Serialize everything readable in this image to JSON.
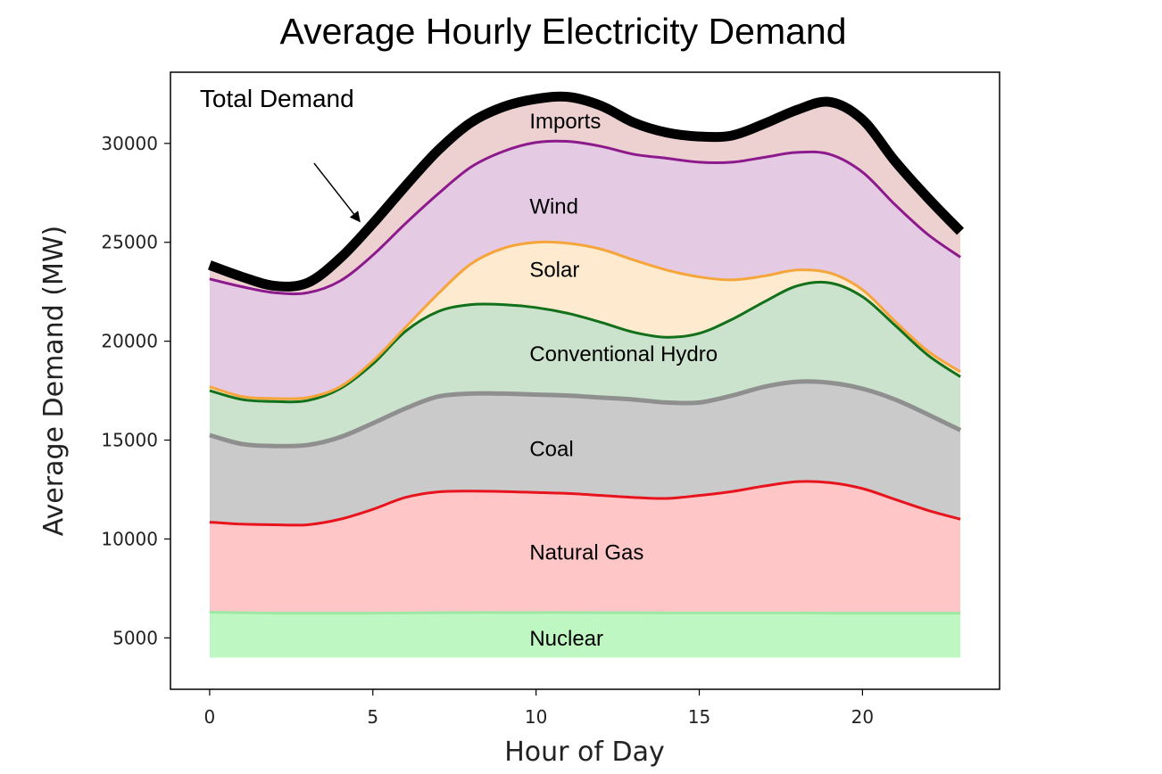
{
  "chart_data": {
    "type": "area",
    "title": "Average Hourly Electricity Demand",
    "xlabel": "Hour of Day",
    "ylabel": "Average Demand (MW)",
    "xlim": [
      -1.2,
      24.2
    ],
    "ylim": [
      2400,
      33600
    ],
    "xticks": [
      0,
      5,
      10,
      15,
      20
    ],
    "yticks": [
      5000,
      10000,
      15000,
      20000,
      25000,
      30000
    ],
    "grid": false,
    "x": [
      0,
      1,
      2,
      3,
      4,
      5,
      6,
      7,
      8,
      9,
      10,
      11,
      12,
      13,
      14,
      15,
      16,
      17,
      18,
      19,
      20,
      21,
      22,
      23
    ],
    "baseline": 4000,
    "layers": [
      {
        "name": "Nuclear",
        "fill": "#bff7c3",
        "line": "#9ee8a5",
        "top": [
          6300,
          6270,
          6250,
          6250,
          6250,
          6250,
          6260,
          6270,
          6280,
          6280,
          6280,
          6280,
          6270,
          6270,
          6260,
          6260,
          6260,
          6260,
          6260,
          6250,
          6250,
          6250,
          6250,
          6250
        ]
      },
      {
        "name": "Natural Gas",
        "fill": "#ffc6c8",
        "line": "#e8141d",
        "top": [
          10850,
          10750,
          10720,
          10720,
          11000,
          11500,
          12100,
          12380,
          12420,
          12400,
          12350,
          12300,
          12200,
          12100,
          12050,
          12200,
          12400,
          12680,
          12900,
          12850,
          12550,
          12000,
          11450,
          11000
        ]
      },
      {
        "name": "Coal",
        "fill": "#cacaca",
        "line": "#8f8f8f",
        "top": [
          15250,
          14800,
          14700,
          14750,
          15150,
          15850,
          16600,
          17200,
          17350,
          17350,
          17300,
          17250,
          17150,
          17050,
          16900,
          16900,
          17250,
          17700,
          17950,
          17900,
          17600,
          17050,
          16300,
          15500
        ]
      },
      {
        "name": "Conventional Hydro",
        "fill": "#cbe3cc",
        "line": "#12701a",
        "top": [
          17500,
          17050,
          16950,
          17000,
          17600,
          18850,
          20500,
          21500,
          21850,
          21850,
          21700,
          21400,
          20950,
          20450,
          20200,
          20400,
          21100,
          22000,
          22800,
          22950,
          22250,
          20800,
          19300,
          18200
        ]
      },
      {
        "name": "Solar",
        "fill": "#feebcf",
        "line": "#f5a53a",
        "top": [
          17700,
          17200,
          17100,
          17150,
          17700,
          19000,
          20700,
          22400,
          23900,
          24700,
          25000,
          24950,
          24650,
          24100,
          23600,
          23250,
          23100,
          23300,
          23600,
          23450,
          22600,
          21000,
          19500,
          18450
        ]
      },
      {
        "name": "Wind",
        "fill": "#e5cae4",
        "line": "#8c1a8c",
        "top": [
          23150,
          22750,
          22450,
          22450,
          23050,
          24350,
          25950,
          27450,
          28800,
          29600,
          30050,
          30100,
          29850,
          29450,
          29250,
          29050,
          29050,
          29300,
          29550,
          29450,
          28550,
          26900,
          25400,
          24250
        ]
      },
      {
        "name": "Imports",
        "fill": "#edd1d1",
        "line": "#edd1d1",
        "top": [
          23850,
          23250,
          22800,
          22950,
          24200,
          25950,
          27850,
          29650,
          31050,
          31850,
          32250,
          32350,
          31900,
          31050,
          30550,
          30350,
          30400,
          31000,
          31700,
          32100,
          31200,
          29100,
          27250,
          25550
        ]
      }
    ],
    "total_demand": [
      23850,
      23250,
      22800,
      22950,
      24200,
      25950,
      27850,
      29650,
      31050,
      31850,
      32250,
      32350,
      31900,
      31050,
      30550,
      30350,
      30400,
      31000,
      31700,
      32100,
      31200,
      29100,
      27250,
      25550
    ],
    "annotation": {
      "text": "Total Demand",
      "text_x": -0.3,
      "text_y": 31850,
      "arrow_start": [
        3.2,
        29000
      ],
      "arrow_end": [
        4.6,
        26050
      ]
    },
    "layer_labels": [
      {
        "text": "Nuclear",
        "x": 9.8,
        "y": 4600
      },
      {
        "text": "Natural Gas",
        "x": 9.8,
        "y": 8950
      },
      {
        "text": "Coal",
        "x": 9.8,
        "y": 14200
      },
      {
        "text": "Conventional Hydro",
        "x": 9.8,
        "y": 19000
      },
      {
        "text": "Solar",
        "x": 9.8,
        "y": 23250
      },
      {
        "text": "Wind",
        "x": 9.8,
        "y": 26450
      },
      {
        "text": "Imports",
        "x": 9.8,
        "y": 30750
      }
    ]
  }
}
